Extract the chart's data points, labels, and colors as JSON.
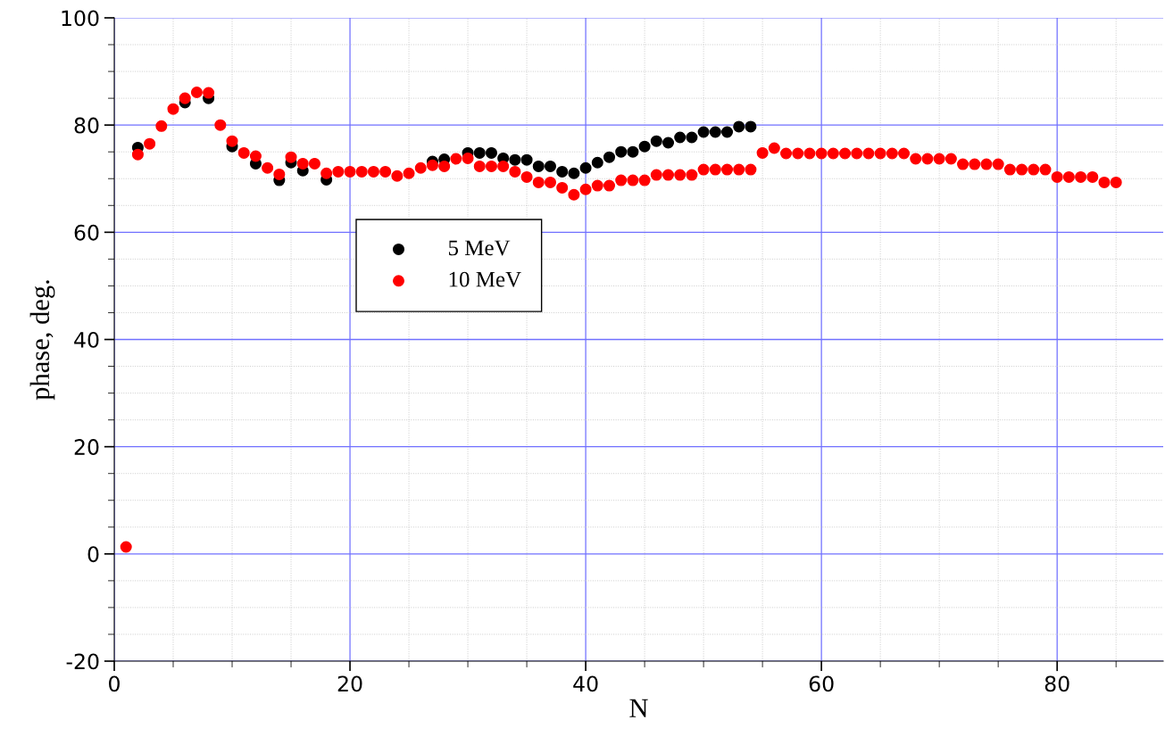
{
  "chart_data": {
    "type": "scatter",
    "xlabel": "N",
    "ylabel": "phase, deg.",
    "xlim": [
      0,
      89
    ],
    "ylim": [
      -20,
      100
    ],
    "xticks": [
      0,
      20,
      40,
      60,
      80
    ],
    "yticks": [
      -20,
      0,
      20,
      40,
      60,
      80,
      100
    ],
    "grid": true,
    "legend": "center left",
    "marker": "circle",
    "series": [
      {
        "name": "5 MeV",
        "color": "#000000",
        "x": [
          2,
          3,
          4,
          5,
          6,
          7,
          8,
          9,
          10,
          11,
          12,
          13,
          14,
          15,
          16,
          17,
          18,
          19,
          20,
          21,
          22,
          23,
          24,
          25,
          26,
          27,
          28,
          29,
          30,
          31,
          32,
          33,
          34,
          35,
          36,
          37,
          38,
          39,
          40,
          41,
          42,
          43,
          44,
          45,
          46,
          47,
          48,
          49,
          50,
          51,
          52,
          53,
          54
        ],
        "values": [
          75.8,
          null,
          null,
          null,
          84.2,
          null,
          85,
          null,
          76,
          null,
          72.8,
          null,
          69.7,
          73,
          71.5,
          null,
          69.8,
          null,
          null,
          null,
          null,
          null,
          null,
          null,
          null,
          73.2,
          73.6,
          null,
          74.8,
          74.8,
          74.8,
          73.8,
          73.5,
          73.5,
          72.3,
          72.3,
          71.3,
          71,
          72,
          73,
          74,
          75,
          75,
          76,
          77,
          76.7,
          77.7,
          77.7,
          78.7,
          78.7,
          78.7,
          79.7,
          79.7
        ]
      },
      {
        "name": "10 MeV",
        "color": "#ff0000",
        "x": [
          1,
          2,
          3,
          4,
          5,
          6,
          7,
          8,
          9,
          10,
          11,
          12,
          13,
          14,
          15,
          16,
          17,
          18,
          19,
          20,
          21,
          22,
          23,
          24,
          25,
          26,
          27,
          28,
          29,
          30,
          31,
          32,
          33,
          34,
          35,
          36,
          37,
          38,
          39,
          40,
          41,
          42,
          43,
          44,
          45,
          46,
          47,
          48,
          49,
          50,
          51,
          52,
          53,
          54,
          55,
          56,
          57,
          58,
          59,
          60,
          61,
          62,
          63,
          64,
          65,
          66,
          67,
          68,
          69,
          70,
          71,
          72,
          73,
          74,
          75,
          76,
          77,
          78,
          79,
          80,
          81,
          82,
          83,
          84,
          85
        ],
        "values": [
          1.3,
          74.5,
          76.5,
          79.8,
          83,
          85,
          86.1,
          86,
          80,
          77,
          74.8,
          74.2,
          72,
          70.8,
          74,
          72.8,
          72.8,
          71,
          71.3,
          71.3,
          71.3,
          71.3,
          71.3,
          70.5,
          71,
          72,
          72.5,
          72.3,
          73.7,
          73.8,
          72.3,
          72.3,
          72.3,
          71.3,
          70.3,
          69.3,
          69.3,
          68.3,
          67,
          68,
          68.7,
          68.7,
          69.7,
          69.7,
          69.7,
          70.7,
          70.7,
          70.7,
          70.7,
          71.7,
          71.7,
          71.7,
          71.7,
          71.7,
          74.8,
          75.7,
          74.7,
          74.7,
          74.7,
          74.7,
          74.7,
          74.7,
          74.7,
          74.7,
          74.7,
          74.7,
          74.7,
          73.7,
          73.7,
          73.7,
          73.7,
          72.7,
          72.7,
          72.7,
          72.7,
          71.7,
          71.7,
          71.7,
          71.7,
          70.3,
          70.3,
          70.3,
          70.3,
          69.3,
          69.3
        ]
      }
    ]
  }
}
